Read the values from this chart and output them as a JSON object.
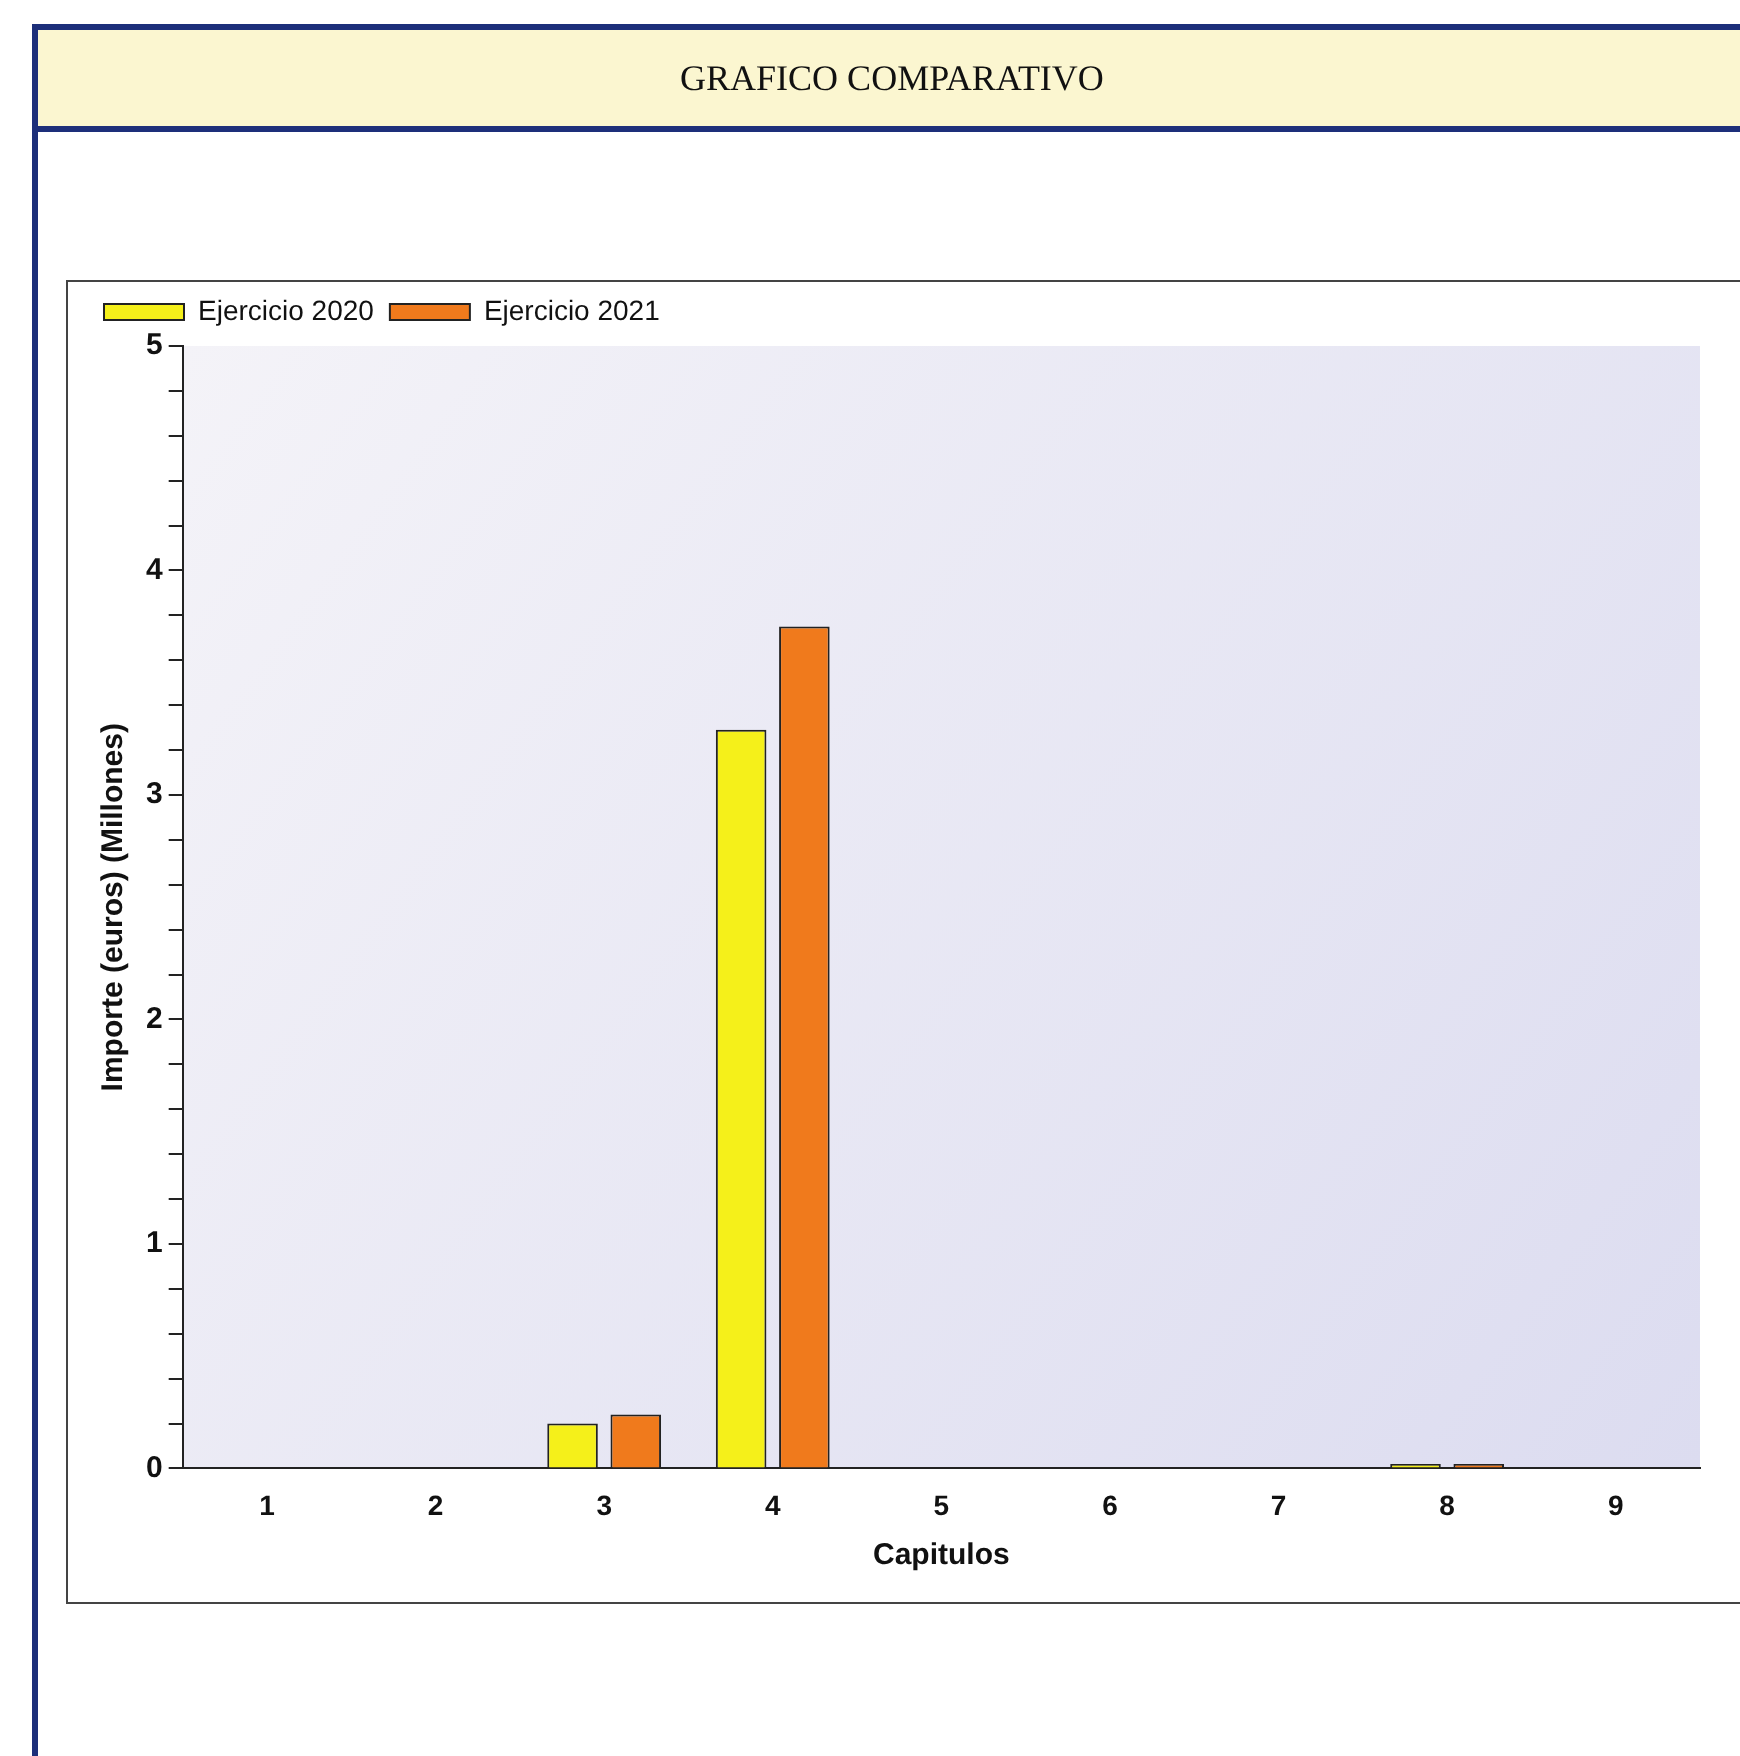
{
  "chart_data": {
    "type": "bar",
    "title": "GRAFICO COMPARATIVO",
    "xlabel": "Capitulos",
    "ylabel": "Importe (euros) (Millones)",
    "categories": [
      "1",
      "2",
      "3",
      "4",
      "5",
      "6",
      "7",
      "8",
      "9"
    ],
    "series": [
      {
        "name": "Ejercicio 2020",
        "color": "#f5f01a",
        "values": [
          0,
          0,
          0.2,
          3.29,
          0,
          0,
          0,
          0.02,
          0
        ]
      },
      {
        "name": "Ejercicio 2021",
        "color": "#f07a1c",
        "values": [
          0,
          0,
          0.24,
          3.75,
          0,
          0,
          0,
          0.02,
          0
        ]
      }
    ],
    "ylim": [
      0,
      5
    ],
    "yticks": [
      0,
      {
        "value": 0.2,
        "label": null
      },
      {
        "value": 0.4,
        "label": null
      },
      {
        "value": 0.6,
        "label": null
      },
      {
        "value": 0.8,
        "label": null
      },
      1,
      {
        "value": 1.2,
        "label": null
      },
      {
        "value": 1.4,
        "label": null
      },
      {
        "value": 1.6,
        "label": null
      },
      {
        "value": 1.8,
        "label": null
      },
      2,
      {
        "value": 2.2,
        "label": null
      },
      {
        "value": 2.4,
        "label": null
      },
      {
        "value": 2.6,
        "label": null
      },
      {
        "value": 2.8,
        "label": null
      },
      3,
      {
        "value": 3.2,
        "label": null
      },
      {
        "value": 3.4,
        "label": null
      },
      {
        "value": 3.6,
        "label": null
      },
      {
        "value": 3.8,
        "label": null
      },
      4,
      {
        "value": 4.2,
        "label": null
      },
      {
        "value": 4.4,
        "label": null
      },
      {
        "value": 4.6,
        "label": null
      },
      {
        "value": 4.8,
        "label": null
      },
      5
    ],
    "grid": false,
    "legend": "top left"
  }
}
